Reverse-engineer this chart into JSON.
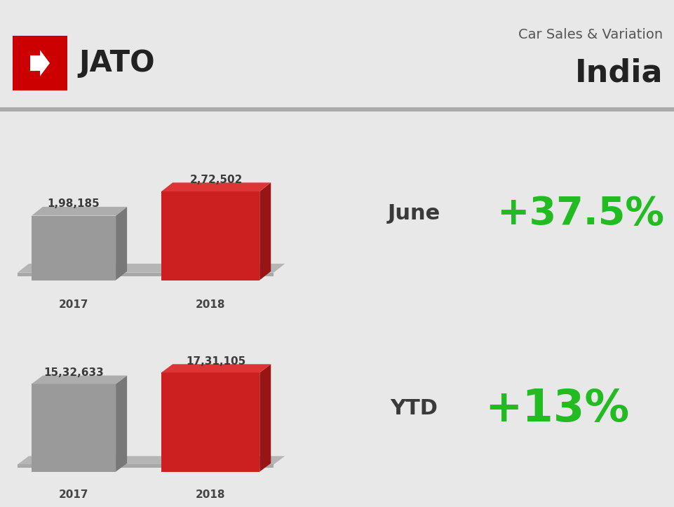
{
  "bg_light": "#e8e8e8",
  "bg_panel": "#c0c0c0",
  "bg_separator": "#b0b0b0",
  "title_line1": "Car Sales & Variation",
  "title_line2": "India",
  "june_2017_val": 198185,
  "june_2018_val": 272502,
  "june_2017_label": "1,98,185",
  "june_2018_label": "2,72,502",
  "ytd_2017_val": 1532633,
  "ytd_2018_val": 1731105,
  "ytd_2017_label": "15,32,633",
  "ytd_2018_label": "17,31,105",
  "june_pct": "+37.5%",
  "ytd_pct": "+13%",
  "june_label": "June",
  "ytd_label": "YTD",
  "year_2017": "2017",
  "year_2018": "2018",
  "bar_gray_face": "#9a9a9a",
  "bar_gray_side": "#787878",
  "bar_gray_top": "#adadad",
  "bar_red_face": "#cc2020",
  "bar_red_side": "#991515",
  "bar_red_top": "#dd3535",
  "floor_color": "#b5b5b5",
  "floor_shadow": "#a8a8a8",
  "green_color": "#22bb22",
  "label_color": "#3a3a3a",
  "title_color": "#555555",
  "india_color": "#222222",
  "jato_red": "#cc0000",
  "sep_color": "#aaaaaa",
  "year_label_color": "#444444"
}
